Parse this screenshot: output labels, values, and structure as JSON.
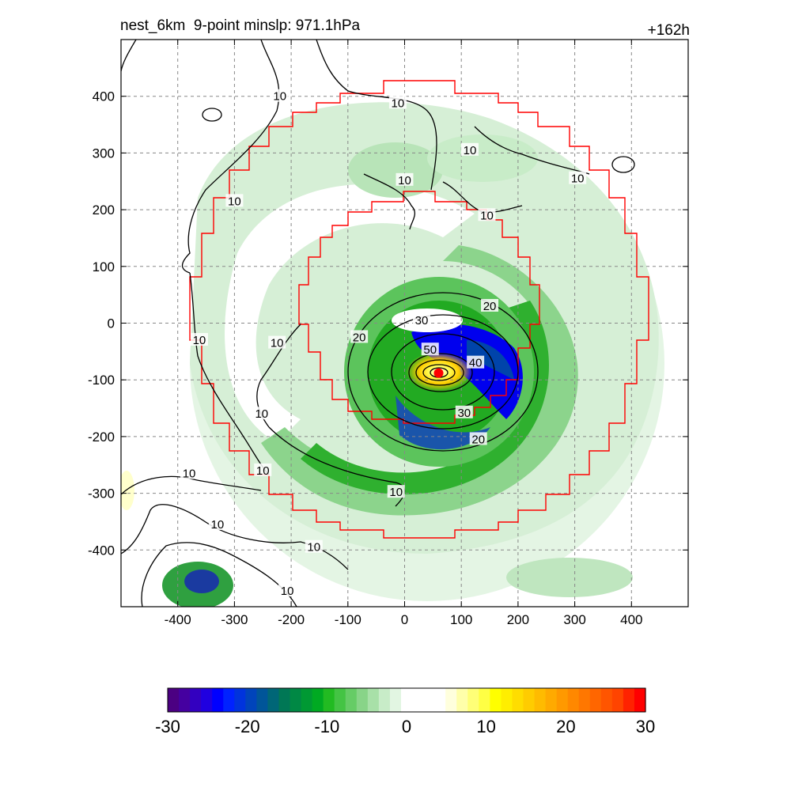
{
  "figure": {
    "title_left": "nest_6km  9-point minslp: 971.1hPa",
    "title_right": "+162h"
  },
  "chart_data": {
    "type": "heatmap",
    "xlim": [
      -500,
      500
    ],
    "ylim": [
      -500,
      500
    ],
    "x_ticks": [
      -400,
      -300,
      -200,
      -100,
      0,
      100,
      200,
      300,
      400
    ],
    "y_ticks": [
      400,
      300,
      200,
      100,
      0,
      -100,
      -200,
      -300,
      -400
    ],
    "x_tick_labels": [
      "-400",
      "-300",
      "-200",
      "-100",
      "0",
      "100",
      "200",
      "300",
      "400"
    ],
    "y_tick_labels": [
      "400",
      "300",
      "200",
      "100",
      "0",
      "-100",
      "-200",
      "-300",
      "-400"
    ],
    "grid": true,
    "center_marker": {
      "x": 60,
      "y": -88,
      "color": "#ff0000"
    },
    "contour_labels": [
      {
        "text": "10",
        "x": -220,
        "y": 400
      },
      {
        "text": "10",
        "x": -12,
        "y": 388
      },
      {
        "text": "10",
        "x": 115,
        "y": 305
      },
      {
        "text": "10",
        "x": 305,
        "y": 255
      },
      {
        "text": "10",
        "x": 0,
        "y": 252
      },
      {
        "text": "10",
        "x": -300,
        "y": 215
      },
      {
        "text": "10",
        "x": 145,
        "y": 190
      },
      {
        "text": "10",
        "x": -362,
        "y": -30
      },
      {
        "text": "10",
        "x": -225,
        "y": -35
      },
      {
        "text": "10",
        "x": -252,
        "y": -160
      },
      {
        "text": "10",
        "x": -380,
        "y": -265
      },
      {
        "text": "10",
        "x": -250,
        "y": -260
      },
      {
        "text": "10",
        "x": -15,
        "y": -298
      },
      {
        "text": "10",
        "x": -330,
        "y": -355
      },
      {
        "text": "10",
        "x": -160,
        "y": -395
      },
      {
        "text": "10",
        "x": -207,
        "y": -472
      },
      {
        "text": "20",
        "x": 150,
        "y": 30
      },
      {
        "text": "20",
        "x": -80,
        "y": -25
      },
      {
        "text": "20",
        "x": 130,
        "y": -205
      },
      {
        "text": "30",
        "x": 30,
        "y": 5
      },
      {
        "text": "30",
        "x": 105,
        "y": -158
      },
      {
        "text": "40",
        "x": 125,
        "y": -70
      },
      {
        "text": "50",
        "x": 45,
        "y": -47
      }
    ],
    "colorbar": {
      "min": -30,
      "max": 30,
      "tick_values": [
        -30,
        -20,
        -10,
        0,
        10,
        20,
        30
      ],
      "tick_labels": [
        "-30",
        "-20",
        "-10",
        "0",
        "10",
        "20",
        "30"
      ],
      "colors": [
        "#4b0082",
        "#4500a0",
        "#3300c0",
        "#2000e0",
        "#0000ff",
        "#0022ff",
        "#0033dd",
        "#0044bb",
        "#005599",
        "#006677",
        "#007755",
        "#008844",
        "#009933",
        "#00aa22",
        "#22bb22",
        "#44c444",
        "#66cc66",
        "#88d488",
        "#a8e0a8",
        "#c8ecc8",
        "#e2f6e2",
        "#ffffff",
        "#ffffff",
        "#ffffff",
        "#ffffff",
        "#ffffdd",
        "#ffffaa",
        "#ffff77",
        "#ffff44",
        "#ffff00",
        "#ffee00",
        "#ffdd00",
        "#ffcc00",
        "#ffbb00",
        "#ffaa00",
        "#ff9900",
        "#ff8800",
        "#ff7700",
        "#ff6600",
        "#ff5500",
        "#ff4400",
        "#ff2200",
        "#ff0000"
      ]
    }
  }
}
